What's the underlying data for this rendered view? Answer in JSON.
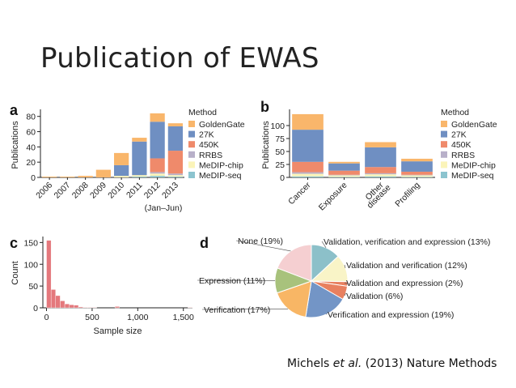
{
  "slide": {
    "title": "Publication of EWAS",
    "citation_authors": "Michels ",
    "citation_etal": "et al.",
    "citation_rest": " (2013) Nature Methods"
  },
  "colors": {
    "GoldenGate": "#f9b66b",
    "27K": "#6f8fc2",
    "450K": "#ef8a6b",
    "RRBS": "#b8b0c9",
    "MeDIP-chip": "#fbf4b9",
    "MeDIP-seq": "#8cc4cf",
    "hist": "#e4787c",
    "pie_none": "#f5cfd1",
    "pie_vve": "#8cc0c9",
    "pie_vv": "#f9f4c7",
    "pie_ve": "#e8805f",
    "pie_v": "#e8805f",
    "pie_verexp": "#7395c6",
    "pie_verification": "#f8b665",
    "pie_expression": "#a8c27c"
  },
  "chart_data": [
    {
      "panel": "a",
      "type": "bar",
      "stacked": true,
      "ylabel": "Publications",
      "xlabel": "",
      "ylim": [
        0,
        85
      ],
      "yticks": [
        0,
        20,
        40,
        60,
        80
      ],
      "categories": [
        "2006",
        "2007",
        "2008",
        "2009",
        "2010",
        "2011",
        "2012",
        "2013"
      ],
      "extra_label": "(Jan–Jun)",
      "legend_title": "Method",
      "series": [
        {
          "name": "MeDIP-seq",
          "values": [
            0,
            0,
            0,
            0,
            0,
            1,
            2,
            1
          ]
        },
        {
          "name": "MeDIP-chip",
          "values": [
            0,
            0,
            0,
            0,
            2,
            2,
            3,
            2
          ]
        },
        {
          "name": "RRBS",
          "values": [
            0,
            0,
            0,
            0,
            0,
            0,
            2,
            2
          ]
        },
        {
          "name": "450K",
          "values": [
            0,
            0,
            0,
            0,
            0,
            0,
            18,
            30
          ]
        },
        {
          "name": "27K",
          "values": [
            0,
            0,
            0,
            0,
            14,
            44,
            48,
            32
          ]
        },
        {
          "name": "GoldenGate",
          "values": [
            1,
            1,
            2,
            10,
            16,
            5,
            11,
            4
          ]
        }
      ]
    },
    {
      "panel": "b",
      "type": "bar",
      "stacked": true,
      "ylabel": "Publications",
      "xlabel": "",
      "ylim": [
        0,
        125
      ],
      "yticks": [
        0,
        25,
        50,
        75,
        100
      ],
      "categories": [
        "Cancer",
        "Exposure",
        "Other disease",
        "Profiling"
      ],
      "legend_title": "Method",
      "series": [
        {
          "name": "MeDIP-seq",
          "values": [
            2,
            1,
            2,
            1
          ]
        },
        {
          "name": "MeDIP-chip",
          "values": [
            5,
            3,
            4,
            3
          ]
        },
        {
          "name": "RRBS",
          "values": [
            3,
            1,
            2,
            1
          ]
        },
        {
          "name": "450K",
          "values": [
            20,
            8,
            12,
            6
          ]
        },
        {
          "name": "27K",
          "values": [
            62,
            14,
            38,
            20
          ]
        },
        {
          "name": "GoldenGate",
          "values": [
            30,
            3,
            10,
            5
          ]
        }
      ]
    },
    {
      "panel": "c",
      "type": "bar",
      "subtype": "histogram",
      "ylabel": "Count",
      "xlabel": "Sample size",
      "ylim": [
        0,
        160
      ],
      "xlim": [
        -40,
        1600
      ],
      "yticks": [
        0,
        50,
        100,
        150
      ],
      "xticks": [
        0,
        500,
        1000,
        1500
      ],
      "xtick_labels": [
        "0",
        "500",
        "1,000",
        "1,500"
      ],
      "bin_width": 50,
      "bin_starts": [
        0,
        50,
        100,
        150,
        200,
        250,
        300,
        350,
        400,
        450,
        500,
        550,
        600,
        650,
        700,
        750,
        800,
        850,
        900,
        950,
        1000,
        1050,
        1100,
        1150,
        1200,
        1250,
        1300,
        1350,
        1400,
        1450,
        1500,
        1550
      ],
      "values": [
        155,
        42,
        28,
        16,
        9,
        7,
        6,
        2,
        1,
        1,
        1,
        0,
        0,
        0,
        0,
        3,
        0,
        0,
        0,
        0,
        0,
        0,
        0,
        0,
        0,
        0,
        0,
        0,
        0,
        0,
        0,
        1
      ]
    },
    {
      "panel": "d",
      "type": "pie",
      "slices": [
        {
          "label": "Validation, verification and expression (13%)",
          "value": 13,
          "color_key": "pie_vve"
        },
        {
          "label": "Validation and verification (12%)",
          "value": 12,
          "color_key": "pie_vv"
        },
        {
          "label": "Validation and expression (2%)",
          "value": 2,
          "color_key": "pie_ve"
        },
        {
          "label": "Validation (6%)",
          "value": 6,
          "color_key": "pie_v"
        },
        {
          "label": "Verification and expression (19%)",
          "value": 19,
          "color_key": "pie_verexp"
        },
        {
          "label": "Verification (17%)",
          "value": 17,
          "color_key": "pie_verification"
        },
        {
          "label": "Expression (11%)",
          "value": 11,
          "color_key": "pie_expression"
        },
        {
          "label": "None (19%)",
          "value": 19,
          "color_key": "pie_none"
        }
      ]
    }
  ],
  "panel_labels": {
    "a": "a",
    "b": "b",
    "c": "c",
    "d": "d"
  }
}
